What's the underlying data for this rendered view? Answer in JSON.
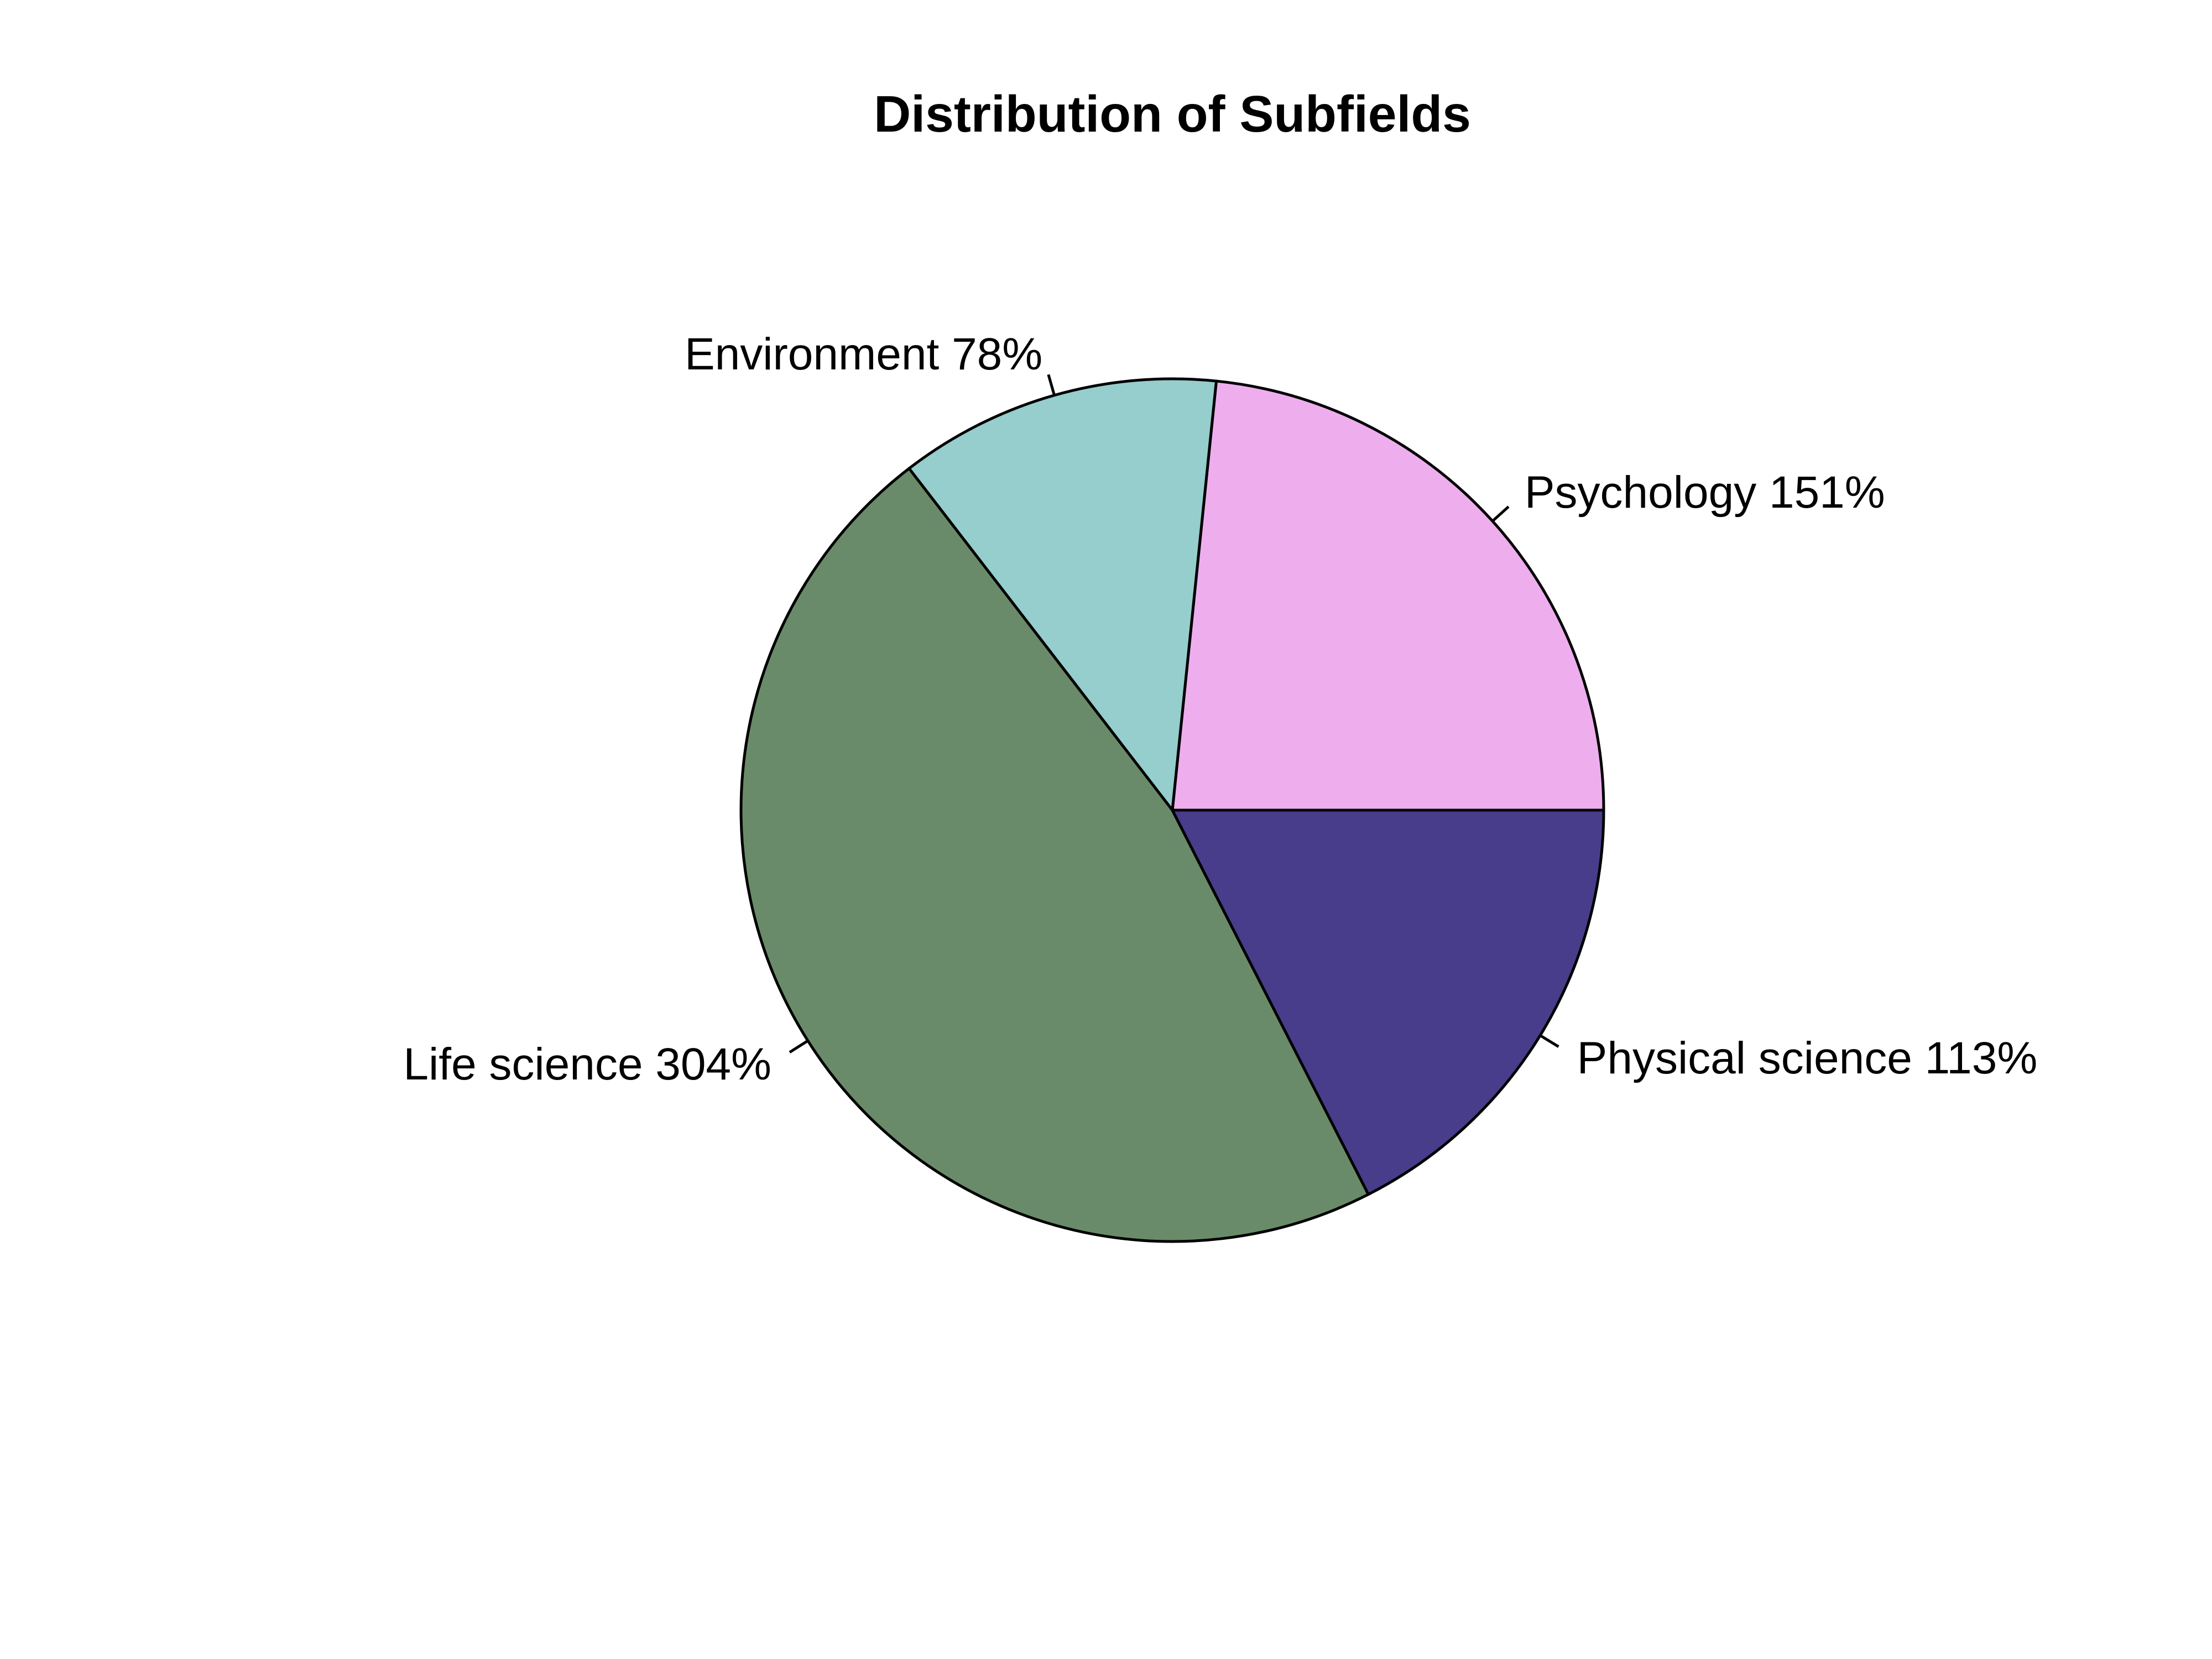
{
  "chart_data": {
    "type": "pie",
    "title": "Distribution of Subfields",
    "direction": "counterclockwise",
    "slices": [
      {
        "label": "Psychology",
        "value": 151,
        "percent_label": "151%",
        "color": "#EEAEEE"
      },
      {
        "label": "Environment",
        "value": 78,
        "percent_label": "78%",
        "color": "#96CDCD"
      },
      {
        "label": "Life science",
        "value": 304,
        "percent_label": "304%",
        "color": "#698B69"
      },
      {
        "label": "Physical science",
        "value": 113,
        "percent_label": "113%",
        "color": "#483D8B"
      }
    ],
    "legend": "none"
  }
}
